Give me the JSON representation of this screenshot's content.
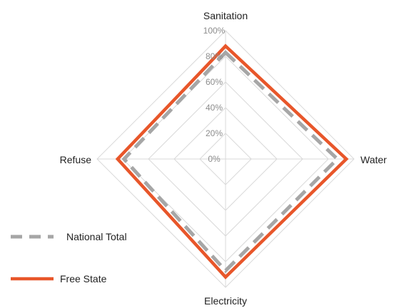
{
  "chart_data": {
    "type": "radar",
    "categories": [
      "Sanitation",
      "Water",
      "Electricity",
      "Refuse"
    ],
    "r_ticks": [
      "0%",
      "20%",
      "40%",
      "60%",
      "80%",
      "100%"
    ],
    "r_range": [
      0,
      100
    ],
    "grid": true,
    "legend_position": "bottom-left",
    "series": [
      {
        "name": "National Total",
        "values": [
          83,
          87,
          87,
          79
        ],
        "color": "#a6a6a6",
        "style": "dashed"
      },
      {
        "name": "Free State",
        "values": [
          88,
          94,
          92,
          84
        ],
        "color": "#e8562a",
        "style": "solid"
      }
    ]
  }
}
